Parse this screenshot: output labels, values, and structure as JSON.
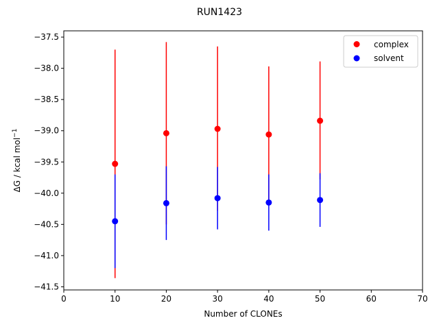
{
  "chart_data": {
    "type": "scatter",
    "title": "RUN1423",
    "xlabel": "Number of CLONEs",
    "ylabel_prefix": "ΔG / kcal mol",
    "ylabel_sup": "−1",
    "xlim": [
      0,
      70
    ],
    "ylim": [
      -41.55,
      -37.4
    ],
    "x_ticks": [
      0,
      10,
      20,
      30,
      40,
      50,
      60,
      70
    ],
    "x_tick_labels": [
      "0",
      "10",
      "20",
      "30",
      "40",
      "50",
      "60",
      "70"
    ],
    "y_ticks": [
      -37.5,
      -38.0,
      -38.5,
      -39.0,
      -39.5,
      -40.0,
      -40.5,
      -41.0,
      -41.5
    ],
    "y_tick_labels": [
      "−37.5",
      "−38.0",
      "−38.5",
      "−39.0",
      "−39.5",
      "−40.0",
      "−40.5",
      "−41.0",
      "−41.5"
    ],
    "grid": false,
    "legend_position": "top-right",
    "series": [
      {
        "name": "complex",
        "color": "#ff0000",
        "x": [
          10,
          20,
          30,
          40,
          50
        ],
        "y": [
          -39.53,
          -39.04,
          -38.97,
          -39.06,
          -38.84
        ],
        "err_low": [
          -41.36,
          -40.5,
          -40.28,
          -40.14,
          -39.78
        ],
        "err_high": [
          -37.7,
          -37.58,
          -37.65,
          -37.97,
          -37.89
        ]
      },
      {
        "name": "solvent",
        "color": "#0000ff",
        "x": [
          10,
          20,
          30,
          40,
          50
        ],
        "y": [
          -40.45,
          -40.16,
          -40.08,
          -40.15,
          -40.11
        ],
        "err_low": [
          -41.2,
          -40.75,
          -40.58,
          -40.6,
          -40.54
        ],
        "err_high": [
          -39.7,
          -39.57,
          -39.58,
          -39.7,
          -39.68
        ]
      }
    ]
  }
}
